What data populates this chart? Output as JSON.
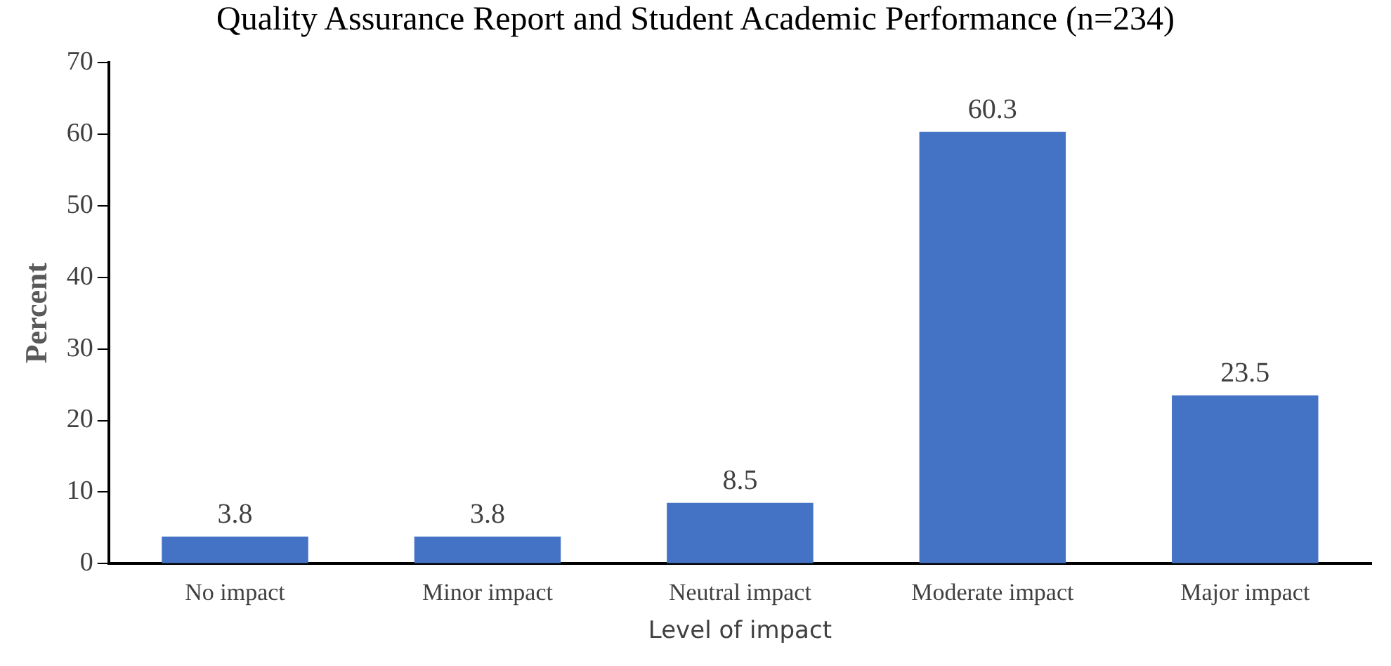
{
  "chart_data": {
    "type": "bar",
    "title": "Quality Assurance Report and Student Academic Performance (n=234)",
    "xlabel": "Level of impact",
    "ylabel": "Percent",
    "categories": [
      "No impact",
      "Minor impact",
      "Neutral impact",
      "Moderate impact",
      "Major impact"
    ],
    "values": [
      3.8,
      3.8,
      8.5,
      60.3,
      23.5
    ],
    "color": "#4472c4",
    "ylim": [
      0,
      70
    ],
    "yticks": [
      0,
      10,
      20,
      30,
      40,
      50,
      60,
      70
    ],
    "grid": false,
    "data_labels": true
  }
}
